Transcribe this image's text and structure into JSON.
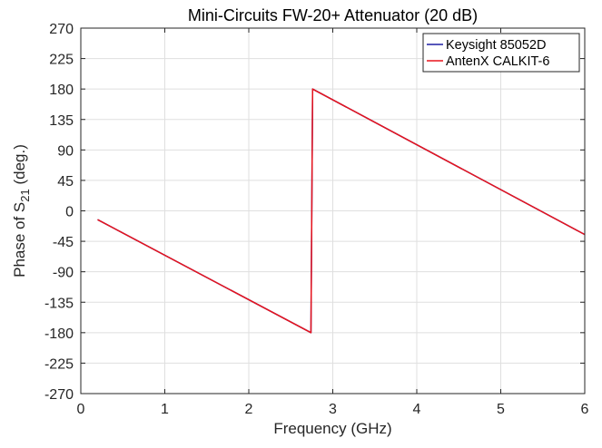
{
  "chart_data": {
    "type": "line",
    "title": "Mini-Circuits FW-20+ Attenuator (20 dB)",
    "xlabel": "Frequency (GHz)",
    "ylabel": "Phase of S",
    "ylabel_sub": "21",
    "ylabel_suffix": " (deg.)",
    "xlim": [
      0,
      6
    ],
    "ylim": [
      -270,
      270
    ],
    "xticks": [
      0,
      1,
      2,
      3,
      4,
      5,
      6
    ],
    "xtick_labels": [
      "0",
      "1",
      "2",
      "3",
      "4",
      "5",
      "6"
    ],
    "yticks": [
      270,
      225,
      180,
      135,
      90,
      45,
      0,
      -45,
      -90,
      -135,
      -180,
      -225,
      -270
    ],
    "ytick_labels": [
      "270",
      "225",
      "180",
      "135",
      "90",
      "45",
      "0",
      "-45",
      "-90",
      "-135",
      "-180",
      "-225",
      "-270"
    ],
    "grid": true,
    "legend_position": "top-right",
    "series": [
      {
        "name": "Keysight 85052D",
        "color": "#1f1fa3",
        "x": [
          0.2,
          2.74,
          2.76,
          6.0
        ],
        "y": [
          -13,
          -180,
          180,
          -35
        ]
      },
      {
        "name": "AntenX CALKIT-6",
        "color": "#e8141c",
        "x": [
          0.2,
          2.74,
          2.76,
          6.0
        ],
        "y": [
          -13,
          -180,
          180,
          -35
        ]
      }
    ]
  }
}
